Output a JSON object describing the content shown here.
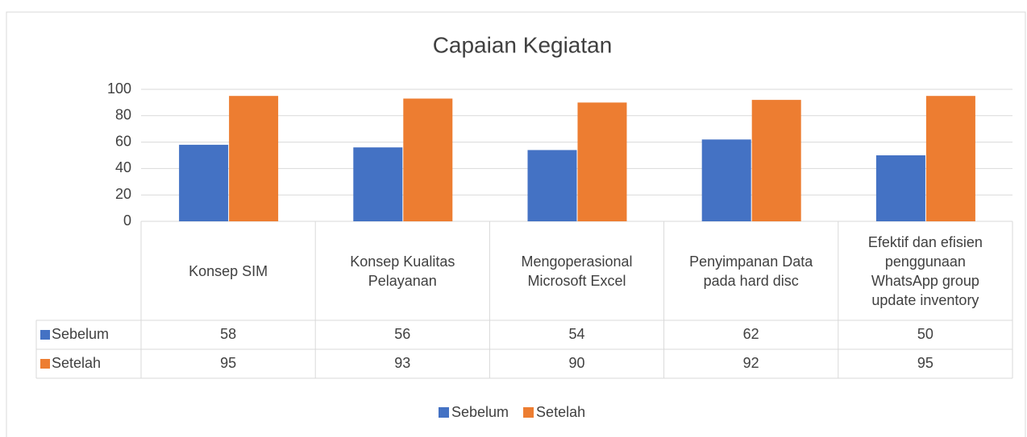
{
  "chart_data": {
    "type": "bar",
    "title": "Capaian Kegiatan",
    "categories": [
      "Konsep SIM",
      "Konsep Kualitas Pelayanan",
      "Mengoperasional Microsoft Excel",
      "Penyimpanan Data pada hard disc",
      "Efektif dan efisien penggunaan WhatsApp group update inventory"
    ],
    "series": [
      {
        "name": "Sebelum",
        "color": "#4472c4",
        "values": [
          58,
          56,
          54,
          62,
          50
        ]
      },
      {
        "name": "Setelah",
        "color": "#ed7d31",
        "values": [
          95,
          93,
          90,
          92,
          95
        ]
      }
    ],
    "ylim": [
      0,
      100
    ],
    "yticks": [
      0,
      20,
      40,
      60,
      80,
      100
    ],
    "grid": true,
    "legend": "bottom",
    "data_table": true
  }
}
